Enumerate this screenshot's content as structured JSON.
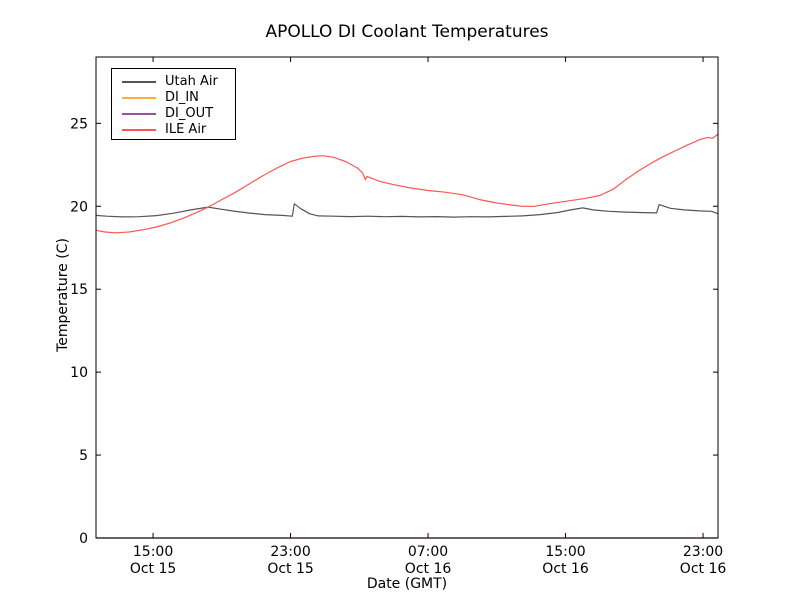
{
  "figure": {
    "title": "APOLLO DI Coolant Temperatures"
  },
  "chart_data": {
    "type": "line",
    "title": "APOLLO DI Coolant Temperatures",
    "xlabel": "Date (GMT)",
    "ylabel": "Temperature (C)",
    "grid": false,
    "legend_position": "upper left",
    "x_unit": "hours since Oct 15 00:00 GMT",
    "xlim": [
      11.68,
      47.87
    ],
    "ylim": [
      0,
      29
    ],
    "yticks": [
      0,
      5,
      10,
      15,
      20,
      25
    ],
    "xticks": [
      {
        "t": 15,
        "time": "15:00",
        "date": "Oct 15"
      },
      {
        "t": 23,
        "time": "23:00",
        "date": "Oct 15"
      },
      {
        "t": 31,
        "time": "07:00",
        "date": "Oct 16"
      },
      {
        "t": 39,
        "time": "15:00",
        "date": "Oct 16"
      },
      {
        "t": 47,
        "time": "23:00",
        "date": "Oct 16"
      }
    ],
    "series": [
      {
        "name": "Utah Air",
        "color": "#555555",
        "points": [
          [
            11.68,
            19.45
          ],
          [
            12.3,
            19.4
          ],
          [
            13.2,
            19.36
          ],
          [
            14.2,
            19.37
          ],
          [
            15.2,
            19.44
          ],
          [
            16.2,
            19.58
          ],
          [
            17.2,
            19.78
          ],
          [
            18.2,
            19.95
          ],
          [
            18.8,
            19.85
          ],
          [
            19.6,
            19.72
          ],
          [
            20.5,
            19.6
          ],
          [
            21.5,
            19.5
          ],
          [
            22.5,
            19.45
          ],
          [
            23.1,
            19.4
          ],
          [
            23.22,
            20.15
          ],
          [
            23.6,
            19.85
          ],
          [
            24.1,
            19.55
          ],
          [
            24.6,
            19.42
          ],
          [
            25.5,
            19.4
          ],
          [
            26.5,
            19.38
          ],
          [
            27.5,
            19.4
          ],
          [
            28.5,
            19.37
          ],
          [
            29.5,
            19.39
          ],
          [
            30.5,
            19.36
          ],
          [
            31.5,
            19.38
          ],
          [
            32.5,
            19.35
          ],
          [
            33.5,
            19.37
          ],
          [
            34.5,
            19.36
          ],
          [
            35.5,
            19.39
          ],
          [
            36.5,
            19.42
          ],
          [
            37.5,
            19.5
          ],
          [
            38.5,
            19.62
          ],
          [
            39.3,
            19.78
          ],
          [
            40,
            19.9
          ],
          [
            40.6,
            19.78
          ],
          [
            41.5,
            19.7
          ],
          [
            42.5,
            19.65
          ],
          [
            43.5,
            19.62
          ],
          [
            44.3,
            19.6
          ],
          [
            44.45,
            20.1
          ],
          [
            45.1,
            19.88
          ],
          [
            45.9,
            19.78
          ],
          [
            46.8,
            19.72
          ],
          [
            47.5,
            19.7
          ],
          [
            47.87,
            19.55
          ]
        ]
      },
      {
        "name": "DI_IN",
        "color": "#ffae3c",
        "points": [
          [
            11.68,
            0
          ],
          [
            47.87,
            0
          ]
        ]
      },
      {
        "name": "DI_OUT",
        "color": "#94519e",
        "points": [
          [
            11.68,
            0
          ],
          [
            47.87,
            0
          ]
        ]
      },
      {
        "name": "ILE Air",
        "color": "#ff5555",
        "points": [
          [
            11.68,
            18.55
          ],
          [
            12.2,
            18.45
          ],
          [
            12.8,
            18.4
          ],
          [
            13.6,
            18.45
          ],
          [
            14.4,
            18.58
          ],
          [
            15.2,
            18.75
          ],
          [
            16,
            19.0
          ],
          [
            16.8,
            19.3
          ],
          [
            17.6,
            19.65
          ],
          [
            18.2,
            19.95
          ],
          [
            19,
            20.4
          ],
          [
            19.8,
            20.85
          ],
          [
            20.6,
            21.35
          ],
          [
            21.4,
            21.85
          ],
          [
            22.2,
            22.3
          ],
          [
            23,
            22.7
          ],
          [
            23.7,
            22.9
          ],
          [
            24.3,
            23.0
          ],
          [
            24.9,
            23.05
          ],
          [
            25.5,
            22.95
          ],
          [
            26.2,
            22.7
          ],
          [
            26.9,
            22.3
          ],
          [
            27.2,
            22.0
          ],
          [
            27.35,
            21.6
          ],
          [
            27.45,
            21.8
          ],
          [
            28.2,
            21.5
          ],
          [
            29,
            21.3
          ],
          [
            30,
            21.1
          ],
          [
            31,
            20.95
          ],
          [
            32,
            20.85
          ],
          [
            33,
            20.7
          ],
          [
            34,
            20.4
          ],
          [
            35,
            20.2
          ],
          [
            36,
            20.05
          ],
          [
            36.5,
            20.0
          ],
          [
            37.2,
            20.0
          ],
          [
            38,
            20.15
          ],
          [
            39,
            20.3
          ],
          [
            40,
            20.45
          ],
          [
            41,
            20.65
          ],
          [
            41.8,
            21.05
          ],
          [
            42.5,
            21.6
          ],
          [
            43.2,
            22.1
          ],
          [
            43.9,
            22.55
          ],
          [
            44.6,
            22.95
          ],
          [
            45.3,
            23.3
          ],
          [
            46.1,
            23.7
          ],
          [
            46.9,
            24.05
          ],
          [
            47.3,
            24.15
          ],
          [
            47.55,
            24.1
          ],
          [
            47.87,
            24.35
          ]
        ]
      }
    ]
  }
}
